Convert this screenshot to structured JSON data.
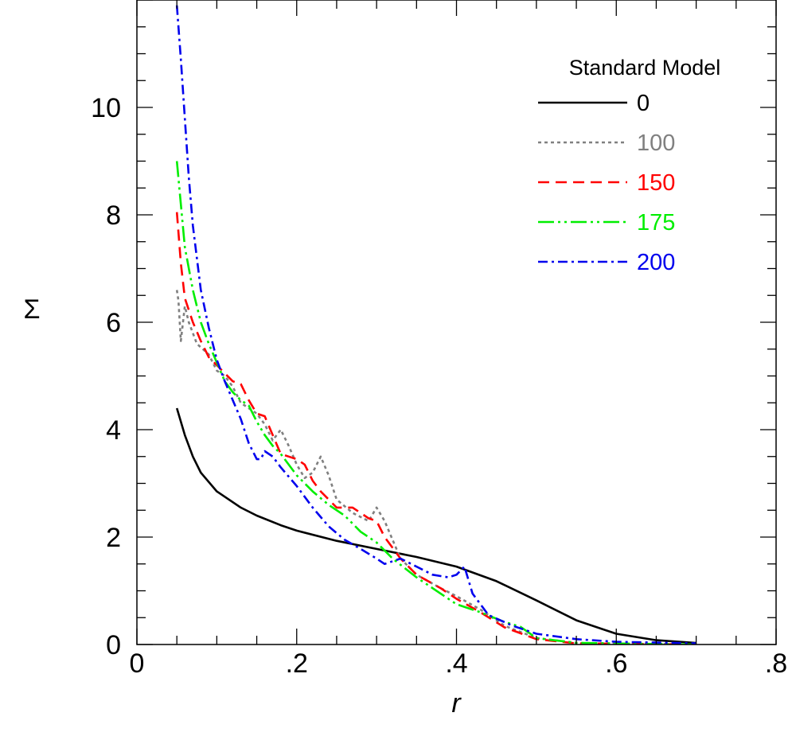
{
  "chart_data": {
    "type": "line",
    "xlabel": "r",
    "ylabel": "Σ",
    "xlim": [
      0,
      0.8
    ],
    "ylim": [
      0,
      12
    ],
    "x_ticks": [
      {
        "value": 0,
        "label": "0"
      },
      {
        "value": 0.2,
        "label": ".2"
      },
      {
        "value": 0.4,
        "label": ".4"
      },
      {
        "value": 0.6,
        "label": ".6"
      },
      {
        "value": 0.8,
        "label": ".8"
      }
    ],
    "y_ticks": [
      {
        "value": 0,
        "label": "0"
      },
      {
        "value": 2,
        "label": "2"
      },
      {
        "value": 4,
        "label": "4"
      },
      {
        "value": 6,
        "label": "6"
      },
      {
        "value": 8,
        "label": "8"
      },
      {
        "value": 10,
        "label": "10"
      }
    ],
    "grid": false,
    "legend": {
      "title": "Standard Model",
      "placement": "top-right"
    },
    "series": [
      {
        "name": "0",
        "color": "#000000",
        "dash": "solid",
        "points": [
          [
            0.05,
            4.4
          ],
          [
            0.06,
            3.9
          ],
          [
            0.07,
            3.5
          ],
          [
            0.08,
            3.2
          ],
          [
            0.1,
            2.85
          ],
          [
            0.13,
            2.55
          ],
          [
            0.15,
            2.4
          ],
          [
            0.18,
            2.22
          ],
          [
            0.2,
            2.12
          ],
          [
            0.25,
            1.93
          ],
          [
            0.3,
            1.78
          ],
          [
            0.35,
            1.63
          ],
          [
            0.4,
            1.45
          ],
          [
            0.45,
            1.18
          ],
          [
            0.5,
            0.82
          ],
          [
            0.55,
            0.45
          ],
          [
            0.6,
            0.2
          ],
          [
            0.65,
            0.08
          ],
          [
            0.7,
            0.03
          ]
        ]
      },
      {
        "name": "100",
        "color": "#808080",
        "dash": "short-dash",
        "points": [
          [
            0.05,
            6.6
          ],
          [
            0.052,
            6.4
          ],
          [
            0.055,
            5.65
          ],
          [
            0.06,
            6.3
          ],
          [
            0.065,
            6.0
          ],
          [
            0.075,
            5.6
          ],
          [
            0.09,
            5.4
          ],
          [
            0.1,
            5.1
          ],
          [
            0.11,
            5.0
          ],
          [
            0.12,
            4.8
          ],
          [
            0.13,
            4.5
          ],
          [
            0.14,
            4.4
          ],
          [
            0.15,
            4.3
          ],
          [
            0.16,
            4.1
          ],
          [
            0.17,
            3.8
          ],
          [
            0.18,
            4.0
          ],
          [
            0.19,
            3.7
          ],
          [
            0.2,
            3.35
          ],
          [
            0.21,
            3.1
          ],
          [
            0.22,
            3.2
          ],
          [
            0.23,
            3.5
          ],
          [
            0.24,
            3.15
          ],
          [
            0.25,
            2.7
          ],
          [
            0.27,
            2.45
          ],
          [
            0.29,
            2.3
          ],
          [
            0.3,
            2.55
          ],
          [
            0.31,
            2.3
          ],
          [
            0.33,
            1.6
          ],
          [
            0.35,
            1.3
          ],
          [
            0.38,
            1.05
          ],
          [
            0.4,
            0.9
          ],
          [
            0.43,
            0.65
          ],
          [
            0.46,
            0.35
          ],
          [
            0.5,
            0.12
          ],
          [
            0.55,
            0.03
          ],
          [
            0.7,
            0.0
          ]
        ]
      },
      {
        "name": "150",
        "color": "#ff0000",
        "dash": "dash",
        "points": [
          [
            0.05,
            8.05
          ],
          [
            0.055,
            7.1
          ],
          [
            0.06,
            6.45
          ],
          [
            0.07,
            6.0
          ],
          [
            0.08,
            5.65
          ],
          [
            0.09,
            5.35
          ],
          [
            0.1,
            5.2
          ],
          [
            0.11,
            5.05
          ],
          [
            0.12,
            4.9
          ],
          [
            0.13,
            4.85
          ],
          [
            0.14,
            4.55
          ],
          [
            0.15,
            4.3
          ],
          [
            0.16,
            4.25
          ],
          [
            0.17,
            3.9
          ],
          [
            0.18,
            3.55
          ],
          [
            0.19,
            3.5
          ],
          [
            0.2,
            3.45
          ],
          [
            0.21,
            3.35
          ],
          [
            0.22,
            3.05
          ],
          [
            0.23,
            2.85
          ],
          [
            0.25,
            2.55
          ],
          [
            0.27,
            2.55
          ],
          [
            0.29,
            2.35
          ],
          [
            0.3,
            2.3
          ],
          [
            0.31,
            2.0
          ],
          [
            0.33,
            1.6
          ],
          [
            0.35,
            1.3
          ],
          [
            0.38,
            1.05
          ],
          [
            0.4,
            0.85
          ],
          [
            0.43,
            0.6
          ],
          [
            0.46,
            0.32
          ],
          [
            0.5,
            0.1
          ],
          [
            0.55,
            0.02
          ],
          [
            0.7,
            0.0
          ]
        ]
      },
      {
        "name": "175",
        "color": "#00ee00",
        "dash": "dash-dot-dot",
        "points": [
          [
            0.05,
            9.0
          ],
          [
            0.055,
            8.2
          ],
          [
            0.06,
            7.4
          ],
          [
            0.07,
            6.6
          ],
          [
            0.08,
            6.0
          ],
          [
            0.09,
            5.6
          ],
          [
            0.1,
            5.25
          ],
          [
            0.11,
            4.9
          ],
          [
            0.12,
            4.7
          ],
          [
            0.13,
            4.55
          ],
          [
            0.14,
            4.45
          ],
          [
            0.15,
            4.15
          ],
          [
            0.16,
            3.9
          ],
          [
            0.17,
            3.7
          ],
          [
            0.18,
            3.55
          ],
          [
            0.19,
            3.35
          ],
          [
            0.2,
            3.15
          ],
          [
            0.22,
            2.85
          ],
          [
            0.24,
            2.6
          ],
          [
            0.26,
            2.4
          ],
          [
            0.28,
            2.1
          ],
          [
            0.3,
            1.9
          ],
          [
            0.32,
            1.6
          ],
          [
            0.35,
            1.25
          ],
          [
            0.38,
            0.95
          ],
          [
            0.4,
            0.75
          ],
          [
            0.43,
            0.6
          ],
          [
            0.46,
            0.42
          ],
          [
            0.48,
            0.33
          ],
          [
            0.5,
            0.12
          ],
          [
            0.55,
            0.03
          ],
          [
            0.7,
            0.0
          ]
        ]
      },
      {
        "name": "200",
        "color": "#0000ee",
        "dash": "dash-dot",
        "points": [
          [
            0.05,
            11.9
          ],
          [
            0.055,
            10.9
          ],
          [
            0.06,
            9.8
          ],
          [
            0.065,
            8.7
          ],
          [
            0.07,
            7.8
          ],
          [
            0.08,
            6.6
          ],
          [
            0.09,
            5.9
          ],
          [
            0.1,
            5.3
          ],
          [
            0.11,
            4.9
          ],
          [
            0.12,
            4.55
          ],
          [
            0.13,
            4.2
          ],
          [
            0.14,
            3.75
          ],
          [
            0.15,
            3.45
          ],
          [
            0.155,
            3.45
          ],
          [
            0.16,
            3.6
          ],
          [
            0.17,
            3.5
          ],
          [
            0.18,
            3.3
          ],
          [
            0.2,
            2.95
          ],
          [
            0.22,
            2.55
          ],
          [
            0.24,
            2.2
          ],
          [
            0.26,
            1.95
          ],
          [
            0.28,
            1.78
          ],
          [
            0.3,
            1.6
          ],
          [
            0.31,
            1.5
          ],
          [
            0.32,
            1.55
          ],
          [
            0.33,
            1.6
          ],
          [
            0.35,
            1.45
          ],
          [
            0.37,
            1.3
          ],
          [
            0.39,
            1.25
          ],
          [
            0.4,
            1.3
          ],
          [
            0.41,
            1.45
          ],
          [
            0.42,
            0.95
          ],
          [
            0.44,
            0.55
          ],
          [
            0.47,
            0.35
          ],
          [
            0.5,
            0.2
          ],
          [
            0.55,
            0.1
          ],
          [
            0.6,
            0.05
          ],
          [
            0.7,
            0.02
          ]
        ]
      }
    ]
  }
}
